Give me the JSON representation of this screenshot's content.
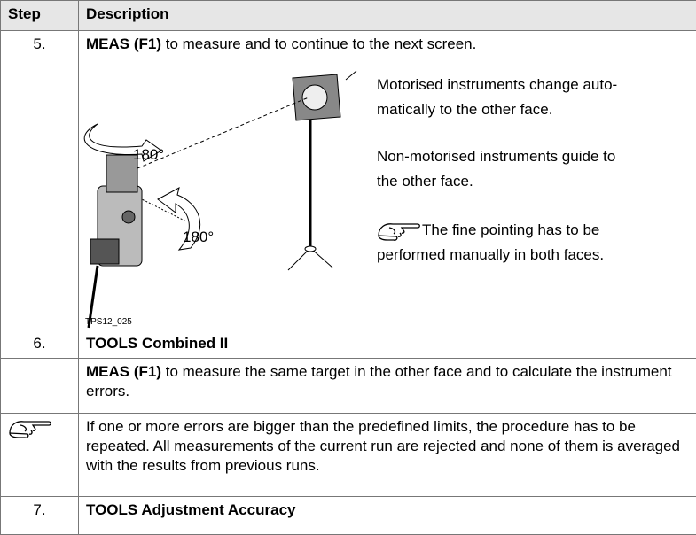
{
  "table": {
    "header": [
      "Step",
      "Description"
    ],
    "rows": [
      {
        "step": "5.",
        "bold": "MEAS (F1)",
        "text": " to measure and to continue to the next screen.",
        "figure": {
          "angle_labels": [
            "180°",
            "180°"
          ],
          "figure_id": "TPS12_025"
        },
        "notes": [
          [
            "Motorised instruments change auto-",
            "matically to the other face."
          ],
          [
            "Non-motorised instruments guide to",
            "the other face."
          ]
        ],
        "hint": [
          "The fine pointing has to be",
          "performed manually in both faces."
        ]
      },
      {
        "step": "6.",
        "bold": "TOOLS Combined II"
      },
      {
        "bold": "MEAS (F1)",
        "text": " to measure the same target in the other face and to calculate the instrument errors."
      },
      {
        "text": "If one or more errors are bigger than the predefined limits, the procedure has to be repeated. All measurements of the current run are rejected and none of them is averaged with the results from previous runs."
      },
      {
        "step": "7.",
        "bold": "TOOLS Adjustment Accuracy"
      }
    ]
  }
}
